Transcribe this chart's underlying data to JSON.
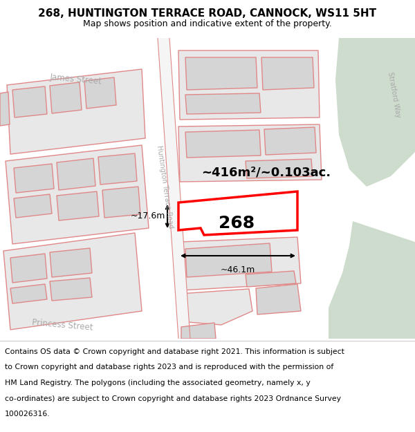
{
  "title": "268, HUNTINGTON TERRACE ROAD, CANNOCK, WS11 5HT",
  "subtitle": "Map shows position and indicative extent of the property.",
  "footer_lines": [
    "Contains OS data © Crown copyright and database right 2021. This information is subject",
    "to Crown copyright and database rights 2023 and is reproduced with the permission of",
    "HM Land Registry. The polygons (including the associated geometry, namely x, y",
    "co-ordinates) are subject to Crown copyright and database rights 2023 Ordnance Survey",
    "100026316."
  ],
  "bg_color": "#ffffff",
  "map_bg": "#ffffff",
  "building_fill": "#e8e8e8",
  "building_edge": "#e08888",
  "highlight_color": "#ff0000",
  "green_color": "#cddccd",
  "road_fill": "#f0f0f0",
  "area_text": "~416m²/~0.103ac.",
  "width_text": "~46.1m",
  "height_text": "~17.6m",
  "property_label": "268",
  "title_fontsize": 11,
  "subtitle_fontsize": 9,
  "footer_fontsize": 7.8,
  "street_color": "#aaaaaa"
}
